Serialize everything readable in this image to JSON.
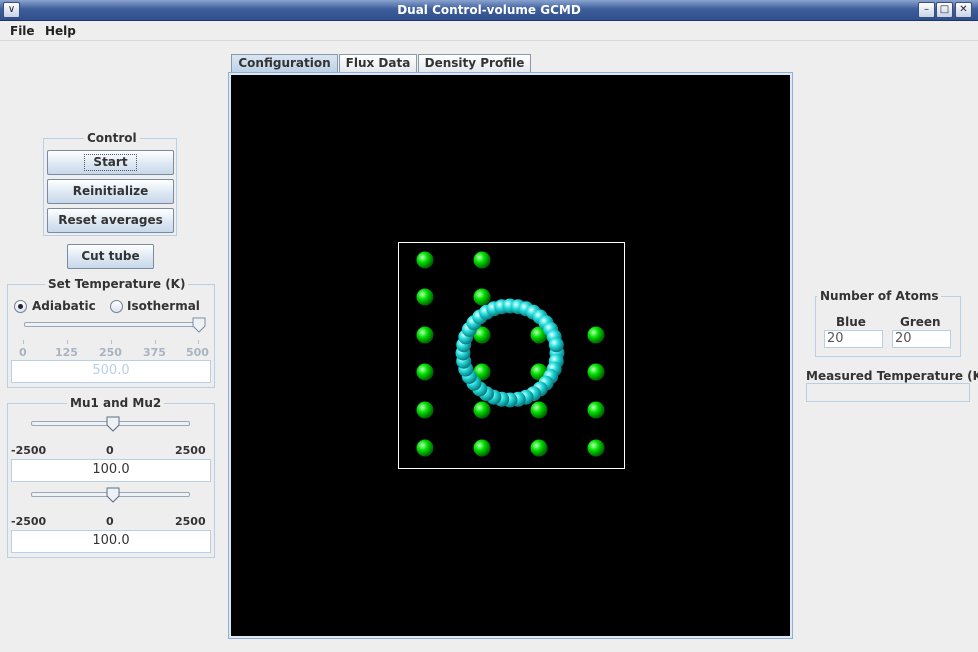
{
  "window": {
    "title": "Dual Control-volume GCMD",
    "controls": {
      "menu": "∨",
      "minimize": "–",
      "maximize": "□",
      "close": "✕"
    }
  },
  "menu": [
    "File",
    "Help"
  ],
  "control": {
    "title": "Control",
    "start": "Start",
    "reinitialize": "Reinitialize",
    "reset_averages": "Reset averages"
  },
  "cut_tube": "Cut tube",
  "temperature": {
    "title": "Set Temperature (K)",
    "adiabatic": "Adiabatic",
    "isothermal": "Isothermal",
    "selected": "Adiabatic",
    "ticks": [
      "0",
      "125",
      "250",
      "375",
      "500"
    ],
    "slider_value": 500,
    "slider_min": 0,
    "slider_max": 500,
    "value": "500.0"
  },
  "mu": {
    "title": "Mu1 and Mu2",
    "ticks": [
      "-2500",
      "0",
      "2500"
    ],
    "slider_min": -2500,
    "slider_max": 2500,
    "mu1_slider": 100,
    "mu2_slider": 100,
    "mu1_value": "100.0",
    "mu2_value": "100.0"
  },
  "tabs": [
    "Configuration",
    "Flux Data",
    "Density Profile"
  ],
  "active_tab": "Configuration",
  "atoms": {
    "title": "Number of Atoms",
    "blue_label": "Blue",
    "green_label": "Green",
    "blue": "20",
    "green": "20"
  },
  "measured_temperature": {
    "title": "Measured Temperature (K)",
    "value": ""
  },
  "colors": {
    "green_atom": "#00e000",
    "tube": "#22dddd",
    "canvas": "#000000"
  }
}
